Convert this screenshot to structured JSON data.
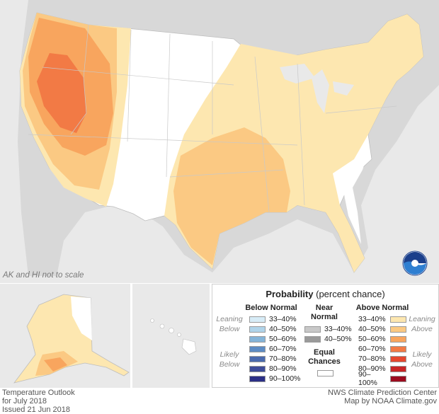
{
  "map": {
    "note": "AK and HI not to scale"
  },
  "legend": {
    "title_bold": "Probability",
    "title_rest": " (percent chance)",
    "below_head": "Below Normal",
    "near_head_1": "Near",
    "near_head_2": "Normal",
    "above_head": "Above Normal",
    "leaning_below_1": "Leaning",
    "leaning_below_2": "Below",
    "likely_below_1": "Likely",
    "likely_below_2": "Below",
    "leaning_above_1": "Leaning",
    "leaning_above_2": "Above",
    "likely_above_1": "Likely",
    "likely_above_2": "Above",
    "equal_1": "Equal",
    "equal_2": "Chances",
    "below": [
      {
        "label": "33–40%",
        "color": "#d7ecf7"
      },
      {
        "label": "40–50%",
        "color": "#b0d4ea"
      },
      {
        "label": "50–60%",
        "color": "#85b4d8"
      },
      {
        "label": "60–70%",
        "color": "#5d8cc4"
      },
      {
        "label": "70–80%",
        "color": "#4a6aae"
      },
      {
        "label": "80–90%",
        "color": "#3d4c99"
      },
      {
        "label": "90–100%",
        "color": "#2b2f86"
      }
    ],
    "near": [
      {
        "label": "33–40%",
        "color": "#c8c8c8"
      },
      {
        "label": "40–50%",
        "color": "#9a9a9a"
      }
    ],
    "above": [
      {
        "label": "33–40%",
        "color": "#fde7b0"
      },
      {
        "label": "40–50%",
        "color": "#fbc983"
      },
      {
        "label": "50–60%",
        "color": "#f8a55e"
      },
      {
        "label": "60–70%",
        "color": "#f27a45"
      },
      {
        "label": "70–80%",
        "color": "#e5482f"
      },
      {
        "label": "80–90%",
        "color": "#c82626"
      },
      {
        "label": "90–100%",
        "color": "#9c0b1e"
      }
    ]
  },
  "footer": {
    "left_1": "Temperature Outlook",
    "left_2": "for July 2018",
    "left_3": "Issued 21 Jun 2018",
    "right_1": "NWS Climate Prediction Center",
    "right_2": "Map by NOAA Climate.gov"
  },
  "logo_text": "NOAA"
}
